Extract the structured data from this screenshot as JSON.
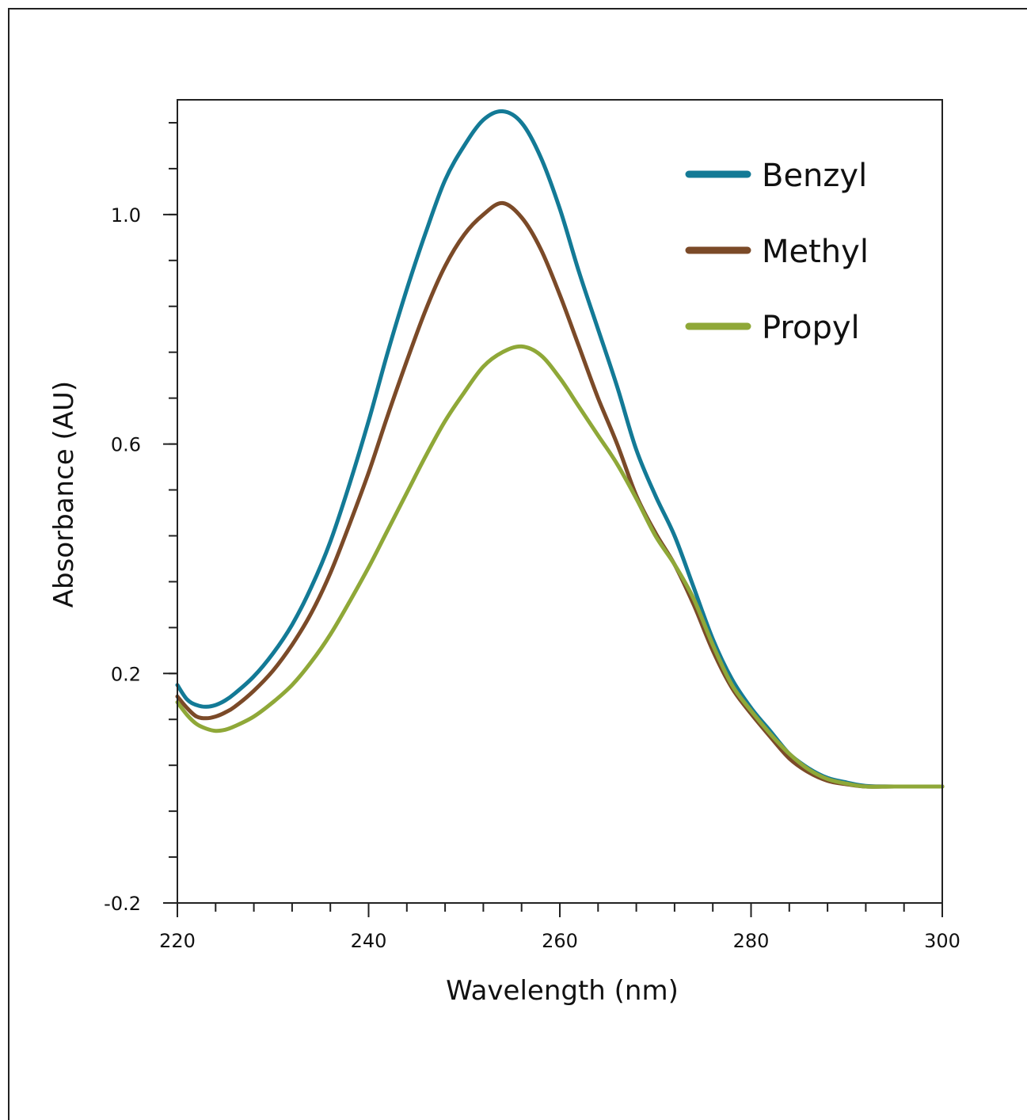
{
  "chart_data": {
    "type": "line",
    "title": "",
    "xlabel": "Wavelength (nm)",
    "ylabel": "Absorbance  (AU)",
    "xlim": [
      220,
      300
    ],
    "ylim": [
      -0.2,
      1.2
    ],
    "x_ticks": [
      {
        "value": 220,
        "label": "220"
      },
      {
        "value": 240,
        "label": "240"
      },
      {
        "value": 260,
        "label": "260"
      },
      {
        "value": 280,
        "label": "280"
      },
      {
        "value": 300,
        "label": "300"
      }
    ],
    "x_minor_step": 4,
    "y_ticks": [
      {
        "value": -0.2,
        "label": "-0.2"
      },
      {
        "value": 0.2,
        "label": "0.2"
      },
      {
        "value": 0.6,
        "label": "0.6"
      },
      {
        "value": 1.0,
        "label": "1.0"
      }
    ],
    "y_minor_step": 0.08,
    "grid": false,
    "legend_position": "top-right",
    "series": [
      {
        "name": "Benzyl",
        "color": "#137a96",
        "points": [
          [
            220,
            0.18
          ],
          [
            221,
            0.155
          ],
          [
            222,
            0.145
          ],
          [
            223,
            0.142
          ],
          [
            224,
            0.145
          ],
          [
            225,
            0.153
          ],
          [
            226,
            0.165
          ],
          [
            228,
            0.195
          ],
          [
            230,
            0.235
          ],
          [
            232,
            0.285
          ],
          [
            234,
            0.35
          ],
          [
            236,
            0.43
          ],
          [
            238,
            0.53
          ],
          [
            240,
            0.64
          ],
          [
            242,
            0.76
          ],
          [
            244,
            0.87
          ],
          [
            246,
            0.97
          ],
          [
            248,
            1.06
          ],
          [
            250,
            1.12
          ],
          [
            252,
            1.165
          ],
          [
            254,
            1.18
          ],
          [
            256,
            1.16
          ],
          [
            258,
            1.1
          ],
          [
            260,
            1.01
          ],
          [
            262,
            0.9
          ],
          [
            264,
            0.8
          ],
          [
            266,
            0.7
          ],
          [
            268,
            0.59
          ],
          [
            270,
            0.51
          ],
          [
            272,
            0.44
          ],
          [
            274,
            0.35
          ],
          [
            276,
            0.26
          ],
          [
            278,
            0.19
          ],
          [
            280,
            0.14
          ],
          [
            282,
            0.1
          ],
          [
            284,
            0.06
          ],
          [
            286,
            0.035
          ],
          [
            288,
            0.018
          ],
          [
            290,
            0.01
          ],
          [
            292,
            0.004
          ],
          [
            295,
            0.003
          ],
          [
            300,
            0.003
          ]
        ]
      },
      {
        "name": "Methyl",
        "color": "#7b4a28",
        "points": [
          [
            220,
            0.16
          ],
          [
            221,
            0.14
          ],
          [
            222,
            0.125
          ],
          [
            223,
            0.122
          ],
          [
            224,
            0.125
          ],
          [
            225,
            0.132
          ],
          [
            226,
            0.142
          ],
          [
            228,
            0.17
          ],
          [
            230,
            0.205
          ],
          [
            232,
            0.25
          ],
          [
            234,
            0.305
          ],
          [
            236,
            0.375
          ],
          [
            238,
            0.46
          ],
          [
            240,
            0.55
          ],
          [
            242,
            0.65
          ],
          [
            244,
            0.745
          ],
          [
            246,
            0.835
          ],
          [
            248,
            0.91
          ],
          [
            250,
            0.965
          ],
          [
            252,
            1.0
          ],
          [
            254,
            1.02
          ],
          [
            256,
            0.995
          ],
          [
            258,
            0.94
          ],
          [
            260,
            0.86
          ],
          [
            262,
            0.77
          ],
          [
            264,
            0.68
          ],
          [
            266,
            0.6
          ],
          [
            268,
            0.51
          ],
          [
            270,
            0.445
          ],
          [
            272,
            0.39
          ],
          [
            274,
            0.32
          ],
          [
            276,
            0.24
          ],
          [
            278,
            0.175
          ],
          [
            280,
            0.13
          ],
          [
            282,
            0.09
          ],
          [
            284,
            0.052
          ],
          [
            286,
            0.028
          ],
          [
            288,
            0.013
          ],
          [
            290,
            0.007
          ],
          [
            292,
            0.003
          ],
          [
            295,
            0.003
          ],
          [
            300,
            0.003
          ]
        ]
      },
      {
        "name": "Propyl",
        "color": "#8fa838",
        "points": [
          [
            220,
            0.15
          ],
          [
            221,
            0.128
          ],
          [
            222,
            0.112
          ],
          [
            223,
            0.104
          ],
          [
            224,
            0.1
          ],
          [
            225,
            0.102
          ],
          [
            226,
            0.108
          ],
          [
            228,
            0.125
          ],
          [
            230,
            0.15
          ],
          [
            232,
            0.18
          ],
          [
            234,
            0.22
          ],
          [
            236,
            0.268
          ],
          [
            238,
            0.325
          ],
          [
            240,
            0.385
          ],
          [
            242,
            0.45
          ],
          [
            244,
            0.515
          ],
          [
            246,
            0.58
          ],
          [
            248,
            0.64
          ],
          [
            250,
            0.69
          ],
          [
            252,
            0.735
          ],
          [
            254,
            0.76
          ],
          [
            256,
            0.77
          ],
          [
            258,
            0.755
          ],
          [
            260,
            0.715
          ],
          [
            262,
            0.665
          ],
          [
            264,
            0.615
          ],
          [
            266,
            0.565
          ],
          [
            268,
            0.505
          ],
          [
            270,
            0.44
          ],
          [
            272,
            0.39
          ],
          [
            274,
            0.33
          ],
          [
            276,
            0.25
          ],
          [
            278,
            0.18
          ],
          [
            280,
            0.135
          ],
          [
            282,
            0.095
          ],
          [
            284,
            0.06
          ],
          [
            286,
            0.033
          ],
          [
            288,
            0.016
          ],
          [
            290,
            0.008
          ],
          [
            292,
            0.003
          ],
          [
            295,
            0.003
          ],
          [
            300,
            0.003
          ]
        ]
      }
    ]
  }
}
